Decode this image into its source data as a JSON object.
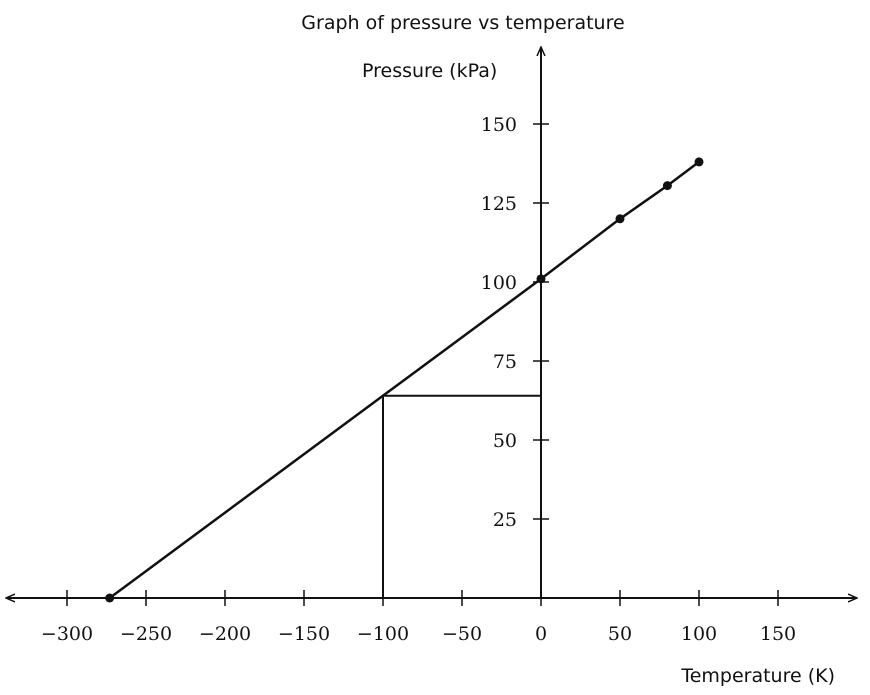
{
  "chart_data": {
    "type": "line",
    "title": "Graph of pressure vs temperature",
    "xlabel": "Temperature (K)",
    "ylabel": "Pressure (kPa)",
    "xlim": [
      -340,
      200
    ],
    "ylim": [
      0,
      175
    ],
    "xticks": [
      -300,
      -250,
      -200,
      -150,
      -100,
      -50,
      0,
      50,
      100,
      150
    ],
    "xtick_labels": [
      "−300",
      "−250",
      "−200",
      "−150",
      "−100",
      "−50",
      "0",
      "50",
      "100",
      "150"
    ],
    "yticks": [
      25,
      50,
      75,
      100,
      125,
      150
    ],
    "ytick_labels": [
      "25",
      "50",
      "75",
      "100",
      "125",
      "150"
    ],
    "grid": false,
    "series": [
      {
        "name": "pressure",
        "x": [
          -273,
          0,
          50,
          80,
          100
        ],
        "y": [
          0,
          101,
          120,
          130.5,
          138
        ]
      }
    ],
    "guide": {
      "x": -100,
      "y": 64
    }
  }
}
